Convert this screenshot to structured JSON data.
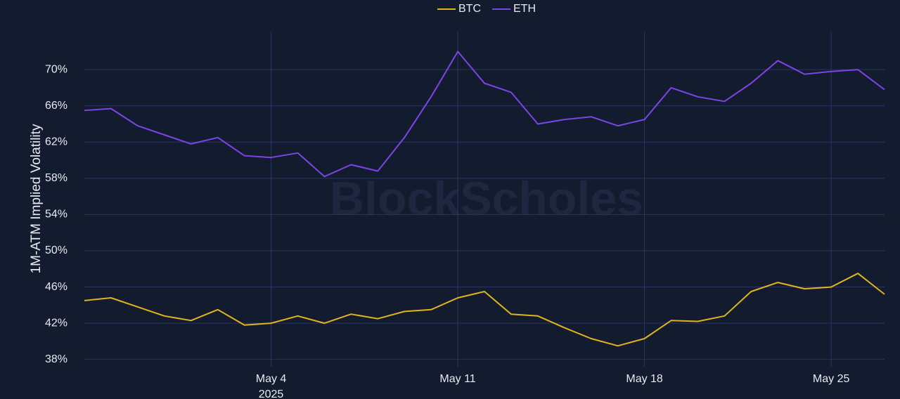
{
  "chart_data": {
    "type": "line",
    "y_label": "1M-ATM Implied Volatility",
    "watermark": "BlockScholes",
    "x": [
      "2025-04-27",
      "2025-04-28",
      "2025-04-29",
      "2025-04-30",
      "2025-05-01",
      "2025-05-02",
      "2025-05-03",
      "2025-05-04",
      "2025-05-05",
      "2025-05-06",
      "2025-05-07",
      "2025-05-08",
      "2025-05-09",
      "2025-05-10",
      "2025-05-11",
      "2025-05-12",
      "2025-05-13",
      "2025-05-14",
      "2025-05-15",
      "2025-05-16",
      "2025-05-17",
      "2025-05-18",
      "2025-05-19",
      "2025-05-20",
      "2025-05-21",
      "2025-05-22",
      "2025-05-23",
      "2025-05-24",
      "2025-05-25",
      "2025-05-26",
      "2025-05-27"
    ],
    "series": [
      {
        "name": "BTC",
        "color": "#e2b41c",
        "values": [
          44.5,
          44.8,
          43.8,
          42.8,
          42.3,
          43.5,
          41.8,
          42,
          42.8,
          42,
          43,
          42.5,
          43.3,
          43.5,
          44.8,
          45.5,
          43,
          42.8,
          41.5,
          40.3,
          39.5,
          40.3,
          42.3,
          42.2,
          42.8,
          45.5,
          46.5,
          45.8,
          46,
          47.5,
          45.2
        ]
      },
      {
        "name": "ETH",
        "color": "#7b45e6",
        "values": [
          65.5,
          65.7,
          63.8,
          62.8,
          61.8,
          62.5,
          60.5,
          60.3,
          60.8,
          58.2,
          59.5,
          58.8,
          62.5,
          67,
          72,
          68.5,
          67.5,
          64,
          64.5,
          64.8,
          63.8,
          64.5,
          68,
          67,
          66.5,
          68.5,
          71,
          69.5,
          69.8,
          70,
          67.8
        ]
      }
    ],
    "xlim": [
      "2025-04-27",
      "2025-05-27"
    ],
    "xticks": [
      {
        "value": "2025-05-04",
        "label": "May 4"
      },
      {
        "value": "2025-05-11",
        "label": "May 11"
      },
      {
        "value": "2025-05-18",
        "label": "May 18"
      },
      {
        "value": "2025-05-25",
        "label": "May 25"
      }
    ],
    "x_year_label": "2025",
    "ylim": [
      37.2,
      74.2
    ],
    "yticks": [
      {
        "value": 38,
        "label": "38%"
      },
      {
        "value": 42,
        "label": "42%"
      },
      {
        "value": 46,
        "label": "46%"
      },
      {
        "value": 50,
        "label": "50%"
      },
      {
        "value": 54,
        "label": "54%"
      },
      {
        "value": 58,
        "label": "58%"
      },
      {
        "value": 62,
        "label": "62%"
      },
      {
        "value": 66,
        "label": "66%"
      },
      {
        "value": 70,
        "label": "70%"
      }
    ],
    "grid": true
  }
}
